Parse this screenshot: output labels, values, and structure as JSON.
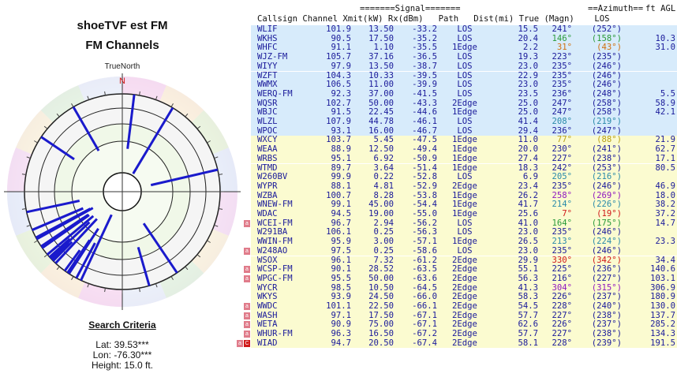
{
  "left": {
    "title1": "shoeTVF est FM",
    "title2": "FM Channels",
    "truenorth": "TrueNorth",
    "north_marker": "N",
    "criteria_heading": "Search Criteria",
    "lat": "Lat: 39.53***",
    "lon": "Lon: -76.30***",
    "height": "Height: 15.0 ft."
  },
  "headers": {
    "line1a": "=======Signal=======",
    "line1b": "==Azimuth==",
    "line1c": "ft AGL",
    "line2": "Callsign Channel Xmit(kW) Rx(dBm)   Path   Dist(mi) True (Magn)    LOS"
  },
  "colors": {
    "row_blue": "#d7ebfb",
    "row_yellow": "#fbfbd0",
    "text": "#1a1a9a",
    "flag_red": "#e07b8a",
    "flag_dark": "#d01818",
    "north": "#d01818",
    "line": "#1a1acc",
    "azimuth": {
      "blue": "#1a1a9a",
      "green": "#2b9a3a",
      "orange": "#d07010",
      "red": "#d01818",
      "yellow": "#b8a018",
      "cyan": "#2a8aaa",
      "purple": "#9018c0"
    }
  },
  "rows": [
    {
      "callsign": "WLIF",
      "channel": "101.9",
      "xmit": "13.50",
      "rx": "-33.2",
      "path": "LOS",
      "dist": "15.5",
      "true": "241°",
      "magn": "(252°)",
      "los": "",
      "az_color": "blue",
      "bg": "blue",
      "flags": []
    },
    {
      "callsign": "WKHS",
      "channel": "90.5",
      "xmit": "17.50",
      "rx": "-35.2",
      "path": "LOS",
      "dist": "20.4",
      "true": "146°",
      "magn": "(158°)",
      "los": "10.3",
      "az_color": "green",
      "bg": "blue",
      "flags": []
    },
    {
      "callsign": "WHFC",
      "channel": "91.1",
      "xmit": "1.10",
      "rx": "-35.5",
      "path": "1Edge",
      "dist": "2.2",
      "true": "31°",
      "magn": "(43°)",
      "los": "31.0",
      "az_color": "orange",
      "bg": "blue",
      "flags": []
    },
    {
      "callsign": "WJZ-FM",
      "channel": "105.7",
      "xmit": "37.16",
      "rx": "-36.5",
      "path": "LOS",
      "dist": "19.3",
      "true": "223°",
      "magn": "(235°)",
      "los": "",
      "az_color": "blue",
      "bg": "blue",
      "flags": []
    },
    {
      "callsign": "WIYY",
      "channel": "97.9",
      "xmit": "13.50",
      "rx": "-38.7",
      "path": "LOS",
      "dist": "23.0",
      "true": "235°",
      "magn": "(246°)",
      "los": "",
      "az_color": "blue",
      "bg": "blue",
      "flags": []
    },
    {
      "callsign": "WZFT",
      "channel": "104.3",
      "xmit": "10.33",
      "rx": "-39.5",
      "path": "LOS",
      "dist": "22.9",
      "true": "235°",
      "magn": "(246°)",
      "los": "",
      "az_color": "blue",
      "bg": "blue",
      "flags": []
    },
    {
      "callsign": "WWMX",
      "channel": "106.5",
      "xmit": "11.00",
      "rx": "-39.9",
      "path": "LOS",
      "dist": "23.0",
      "true": "235°",
      "magn": "(246°)",
      "los": "",
      "az_color": "blue",
      "bg": "blue",
      "flags": []
    },
    {
      "callsign": "WERQ-FM",
      "channel": "92.3",
      "xmit": "37.00",
      "rx": "-41.5",
      "path": "LOS",
      "dist": "23.5",
      "true": "236°",
      "magn": "(248°)",
      "los": "5.5",
      "az_color": "blue",
      "bg": "blue",
      "flags": []
    },
    {
      "callsign": "WQSR",
      "channel": "102.7",
      "xmit": "50.00",
      "rx": "-43.3",
      "path": "2Edge",
      "dist": "25.0",
      "true": "247°",
      "magn": "(258°)",
      "los": "58.9",
      "az_color": "blue",
      "bg": "blue",
      "flags": []
    },
    {
      "callsign": "WBJC",
      "channel": "91.5",
      "xmit": "22.45",
      "rx": "-44.6",
      "path": "1Edge",
      "dist": "25.0",
      "true": "247°",
      "magn": "(258°)",
      "los": "42.1",
      "az_color": "blue",
      "bg": "blue",
      "flags": []
    },
    {
      "callsign": "WLZL",
      "channel": "107.9",
      "xmit": "44.78",
      "rx": "-46.1",
      "path": "LOS",
      "dist": "41.4",
      "true": "208°",
      "magn": "(219°)",
      "los": "",
      "az_color": "cyan",
      "bg": "blue",
      "flags": []
    },
    {
      "callsign": "WPOC",
      "channel": "93.1",
      "xmit": "16.00",
      "rx": "-46.7",
      "path": "LOS",
      "dist": "29.4",
      "true": "236°",
      "magn": "(247°)",
      "los": "",
      "az_color": "blue",
      "bg": "blue",
      "flags": []
    },
    {
      "callsign": "WXCY",
      "channel": "103.7",
      "xmit": "5.45",
      "rx": "-47.5",
      "path": "1Edge",
      "dist": "11.0",
      "true": "77°",
      "magn": "(88°)",
      "los": "21.9",
      "az_color": "yellow",
      "bg": "yellow",
      "flags": []
    },
    {
      "callsign": "WEAA",
      "channel": "88.9",
      "xmit": "12.50",
      "rx": "-49.4",
      "path": "1Edge",
      "dist": "20.0",
      "true": "230°",
      "magn": "(241°)",
      "los": "62.7",
      "az_color": "blue",
      "bg": "yellow",
      "flags": []
    },
    {
      "callsign": "WRBS",
      "channel": "95.1",
      "xmit": "6.92",
      "rx": "-50.9",
      "path": "1Edge",
      "dist": "27.4",
      "true": "227°",
      "magn": "(238°)",
      "los": "17.1",
      "az_color": "blue",
      "bg": "yellow",
      "flags": []
    },
    {
      "callsign": "WTMD",
      "channel": "89.7",
      "xmit": "3.64",
      "rx": "-51.4",
      "path": "1Edge",
      "dist": "18.3",
      "true": "242°",
      "magn": "(253°)",
      "los": "80.5",
      "az_color": "blue",
      "bg": "yellow",
      "flags": []
    },
    {
      "callsign": "W260BV",
      "channel": "99.9",
      "xmit": "0.22",
      "rx": "-52.8",
      "path": "LOS",
      "dist": "6.9",
      "true": "205°",
      "magn": "(216°)",
      "los": "",
      "az_color": "cyan",
      "bg": "yellow",
      "flags": []
    },
    {
      "callsign": "WYPR",
      "channel": "88.1",
      "xmit": "4.81",
      "rx": "-52.9",
      "path": "2Edge",
      "dist": "23.4",
      "true": "235°",
      "magn": "(246°)",
      "los": "46.9",
      "az_color": "blue",
      "bg": "yellow",
      "flags": []
    },
    {
      "callsign": "WZBA",
      "channel": "100.7",
      "xmit": "8.28",
      "rx": "-53.8",
      "path": "1Edge",
      "dist": "26.2",
      "true": "258°",
      "magn": "(269°)",
      "los": "18.0",
      "az_color": "purple",
      "bg": "yellow",
      "flags": []
    },
    {
      "callsign": "WNEW-FM",
      "channel": "99.1",
      "xmit": "45.00",
      "rx": "-54.4",
      "path": "1Edge",
      "dist": "41.7",
      "true": "214°",
      "magn": "(226°)",
      "los": "38.2",
      "az_color": "cyan",
      "bg": "yellow",
      "flags": []
    },
    {
      "callsign": "WDAC",
      "channel": "94.5",
      "xmit": "19.00",
      "rx": "-55.0",
      "path": "1Edge",
      "dist": "25.6",
      "true": "7°",
      "magn": "(19°)",
      "los": "37.2",
      "az_color": "red",
      "bg": "yellow",
      "flags": []
    },
    {
      "callsign": "WCEI-FM",
      "channel": "96.7",
      "xmit": "2.94",
      "rx": "-56.2",
      "path": "LOS",
      "dist": "41.0",
      "true": "164°",
      "magn": "(175°)",
      "los": "14.7",
      "az_color": "green",
      "bg": "yellow",
      "flags": [
        "a"
      ]
    },
    {
      "callsign": "W291BA",
      "channel": "106.1",
      "xmit": "0.25",
      "rx": "-56.3",
      "path": "LOS",
      "dist": "23.0",
      "true": "235°",
      "magn": "(246°)",
      "los": "",
      "az_color": "blue",
      "bg": "yellow",
      "flags": []
    },
    {
      "callsign": "WWIN-FM",
      "channel": "95.9",
      "xmit": "3.00",
      "rx": "-57.1",
      "path": "1Edge",
      "dist": "26.5",
      "true": "213°",
      "magn": "(224°)",
      "los": "23.3",
      "az_color": "cyan",
      "bg": "yellow",
      "flags": []
    },
    {
      "callsign": "W248AO",
      "channel": "97.5",
      "xmit": "0.25",
      "rx": "-58.6",
      "path": "LOS",
      "dist": "23.0",
      "true": "235°",
      "magn": "(246°)",
      "los": "",
      "az_color": "blue",
      "bg": "yellow",
      "flags": [
        "a"
      ]
    },
    {
      "callsign": "WSOX",
      "channel": "96.1",
      "xmit": "7.32",
      "rx": "-61.2",
      "path": "2Edge",
      "dist": "29.9",
      "true": "330°",
      "magn": "(342°)",
      "los": "34.4",
      "az_color": "red",
      "bg": "yellow",
      "flags": []
    },
    {
      "callsign": "WCSP-FM",
      "channel": "90.1",
      "xmit": "28.52",
      "rx": "-63.5",
      "path": "2Edge",
      "dist": "55.1",
      "true": "225°",
      "magn": "(236°)",
      "los": "140.6",
      "az_color": "blue",
      "bg": "yellow",
      "flags": [
        "a"
      ]
    },
    {
      "callsign": "WPGC-FM",
      "channel": "95.5",
      "xmit": "50.00",
      "rx": "-63.6",
      "path": "2Edge",
      "dist": "56.3",
      "true": "216°",
      "magn": "(227°)",
      "los": "103.1",
      "az_color": "blue",
      "bg": "yellow",
      "flags": [
        "a"
      ]
    },
    {
      "callsign": "WYCR",
      "channel": "98.5",
      "xmit": "10.50",
      "rx": "-64.5",
      "path": "2Edge",
      "dist": "41.3",
      "true": "304°",
      "magn": "(315°)",
      "los": "306.9",
      "az_color": "purple",
      "bg": "yellow",
      "flags": []
    },
    {
      "callsign": "WKYS",
      "channel": "93.9",
      "xmit": "24.50",
      "rx": "-66.0",
      "path": "2Edge",
      "dist": "58.3",
      "true": "226°",
      "magn": "(237°)",
      "los": "180.9",
      "az_color": "blue",
      "bg": "yellow",
      "flags": []
    },
    {
      "callsign": "WWDC",
      "channel": "101.1",
      "xmit": "22.50",
      "rx": "-66.1",
      "path": "2Edge",
      "dist": "54.5",
      "true": "228°",
      "magn": "(240°)",
      "los": "130.0",
      "az_color": "blue",
      "bg": "yellow",
      "flags": [
        "a"
      ]
    },
    {
      "callsign": "WASH",
      "channel": "97.1",
      "xmit": "17.50",
      "rx": "-67.1",
      "path": "2Edge",
      "dist": "57.7",
      "true": "227°",
      "magn": "(238°)",
      "los": "137.7",
      "az_color": "blue",
      "bg": "yellow",
      "flags": [
        "a"
      ]
    },
    {
      "callsign": "WETA",
      "channel": "90.9",
      "xmit": "75.00",
      "rx": "-67.1",
      "path": "2Edge",
      "dist": "62.6",
      "true": "226°",
      "magn": "(237°)",
      "los": "285.2",
      "az_color": "blue",
      "bg": "yellow",
      "flags": [
        "a"
      ]
    },
    {
      "callsign": "WHUR-FM",
      "channel": "96.3",
      "xmit": "16.50",
      "rx": "-67.2",
      "path": "2Edge",
      "dist": "57.7",
      "true": "227°",
      "magn": "(238°)",
      "los": "134.3",
      "az_color": "blue",
      "bg": "yellow",
      "flags": [
        "a"
      ]
    },
    {
      "callsign": "WIAD",
      "channel": "94.7",
      "xmit": "20.50",
      "rx": "-67.4",
      "path": "2Edge",
      "dist": "58.1",
      "true": "228°",
      "magn": "(239°)",
      "los": "191.5",
      "az_color": "blue",
      "bg": "yellow",
      "flags": [
        "a",
        "C"
      ]
    }
  ]
}
